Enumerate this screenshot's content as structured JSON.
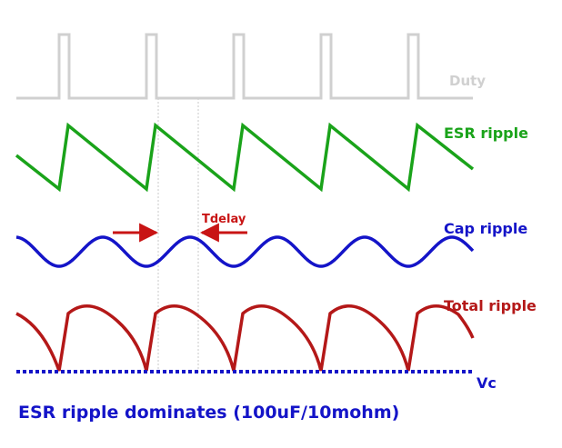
{
  "labels": {
    "duty": "Duty",
    "esr_ripple": "ESR ripple",
    "tdelay": "Tdelay",
    "cap_ripple": "Cap ripple",
    "total_ripple": "Total ripple",
    "vc": "Vc"
  },
  "caption": "ESR ripple dominates (100uF/10mohm)",
  "colors": {
    "duty": "#d0d0d0",
    "esr": "#1aa31a",
    "cap": "#1414c8",
    "total": "#b41818",
    "vc": "#1414c8",
    "tdelay": "#c81414",
    "guide": "#c8c8c8"
  },
  "waveforms": {
    "periods": 5,
    "duty_pulse_fraction": 0.1,
    "tdelay_fraction_of_period": 0.47
  }
}
